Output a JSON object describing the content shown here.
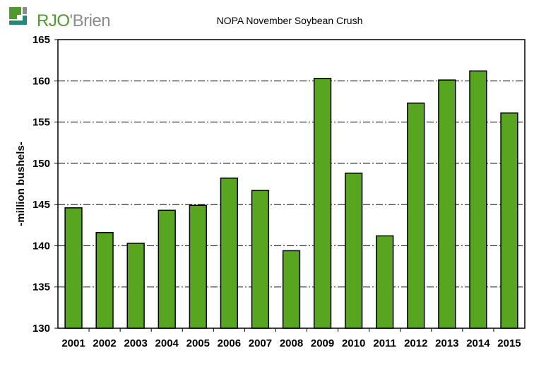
{
  "logo": {
    "text_primary": "RJO",
    "text_secondary": "'Brien",
    "colors": {
      "green": "#4e9a2c",
      "gray": "#8a8c8e",
      "teal": "#1f8a78"
    }
  },
  "chart_data": {
    "type": "bar",
    "title": "NOPA November Soybean Crush",
    "xlabel": "",
    "ylabel": "-million bushels-",
    "ylim": [
      130,
      165
    ],
    "yticks": [
      130,
      135,
      140,
      145,
      150,
      155,
      160,
      165
    ],
    "grid": "horizontal dash-dot",
    "categories": [
      "2001",
      "2002",
      "2003",
      "2004",
      "2005",
      "2006",
      "2007",
      "2008",
      "2009",
      "2010",
      "2011",
      "2012",
      "2013",
      "2014",
      "2015"
    ],
    "values": [
      144.6,
      141.6,
      140.3,
      144.3,
      144.9,
      148.2,
      146.7,
      139.4,
      160.3,
      148.8,
      141.2,
      157.3,
      160.1,
      161.2,
      156.1
    ],
    "bar_color": "#58a51f",
    "bar_edge_color": "#000000"
  }
}
